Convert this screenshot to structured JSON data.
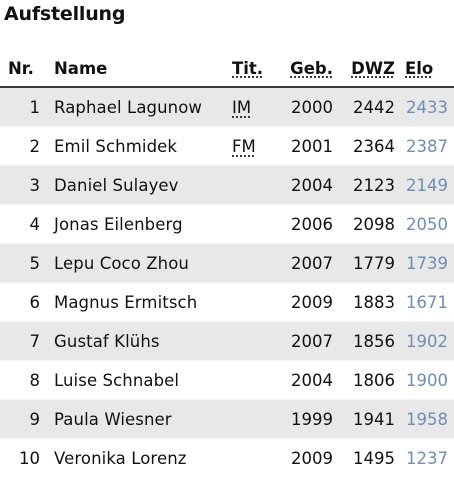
{
  "title": "Aufstellung",
  "colors": {
    "elo_link": "#6f8db5",
    "row_stripe": "#e8e8e8",
    "header_rule": "#3a3a3a"
  },
  "columns": {
    "nr": "Nr.",
    "name": "Name",
    "tit": "Tit.",
    "geb": "Geb.",
    "dwz": "DWZ",
    "elo": "Elo"
  },
  "players": [
    {
      "nr": "1",
      "name": "Raphael Lagunow",
      "tit": "IM",
      "geb": "2000",
      "dwz": "2442",
      "elo": "2433"
    },
    {
      "nr": "2",
      "name": "Emil Schmidek",
      "tit": "FM",
      "geb": "2001",
      "dwz": "2364",
      "elo": "2387"
    },
    {
      "nr": "3",
      "name": "Daniel Sulayev",
      "tit": "",
      "geb": "2004",
      "dwz": "2123",
      "elo": "2149"
    },
    {
      "nr": "4",
      "name": "Jonas Eilenberg",
      "tit": "",
      "geb": "2006",
      "dwz": "2098",
      "elo": "2050"
    },
    {
      "nr": "5",
      "name": "Lepu Coco Zhou",
      "tit": "",
      "geb": "2007",
      "dwz": "1779",
      "elo": "1739"
    },
    {
      "nr": "6",
      "name": "Magnus Ermitsch",
      "tit": "",
      "geb": "2009",
      "dwz": "1883",
      "elo": "1671"
    },
    {
      "nr": "7",
      "name": "Gustaf Klühs",
      "tit": "",
      "geb": "2007",
      "dwz": "1856",
      "elo": "1902"
    },
    {
      "nr": "8",
      "name": "Luise Schnabel",
      "tit": "",
      "geb": "2004",
      "dwz": "1806",
      "elo": "1900"
    },
    {
      "nr": "9",
      "name": "Paula Wiesner",
      "tit": "",
      "geb": "1999",
      "dwz": "1941",
      "elo": "1958"
    },
    {
      "nr": "10",
      "name": "Veronika Lorenz",
      "tit": "",
      "geb": "2009",
      "dwz": "1495",
      "elo": "1237"
    }
  ]
}
